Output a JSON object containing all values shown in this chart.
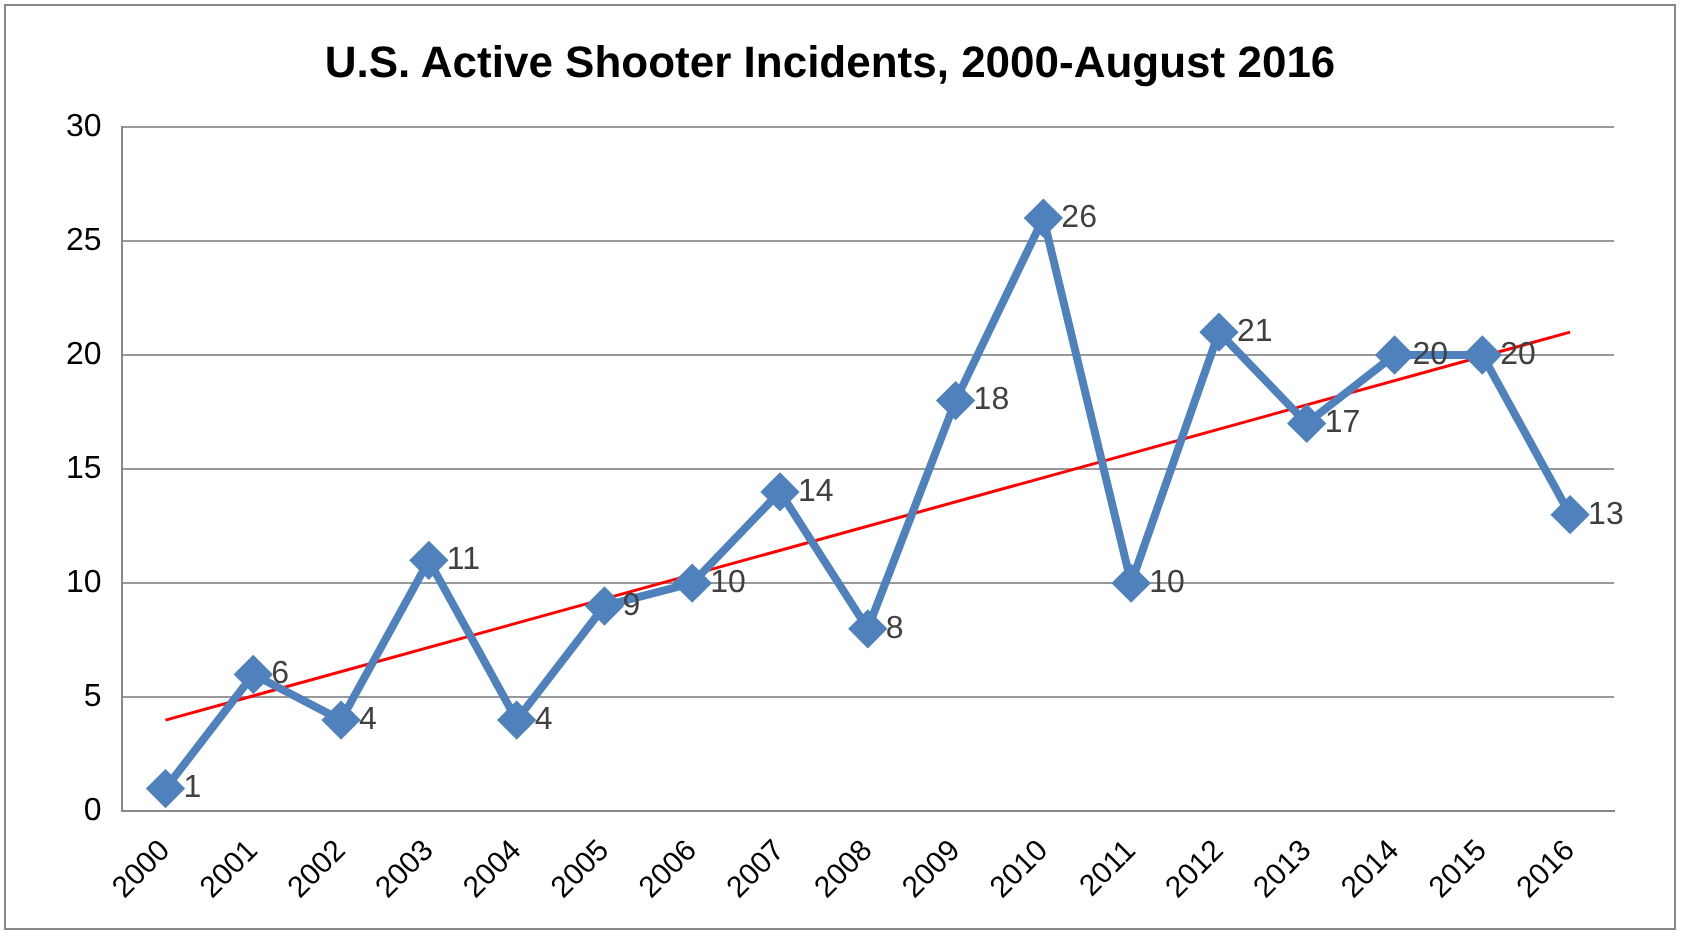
{
  "chart_data": {
    "type": "line",
    "title": "U.S. Active Shooter Incidents, 2000-August 2016",
    "categories": [
      "2000",
      "2001",
      "2002",
      "2003",
      "2004",
      "2005",
      "2006",
      "2007",
      "2008",
      "2009",
      "2010",
      "2011",
      "2012",
      "2013",
      "2014",
      "2015",
      "2016"
    ],
    "series": [
      {
        "color": "#4f81bd",
        "marker": "diamond",
        "data_labels": true,
        "values": [
          1,
          6,
          4,
          11,
          4,
          9,
          10,
          14,
          8,
          18,
          26,
          10,
          21,
          17,
          20,
          20,
          13
        ]
      },
      {
        "type": "line",
        "color": "#ff0000",
        "marker": "none",
        "values": [
          4,
          null,
          null,
          null,
          null,
          null,
          null,
          null,
          null,
          null,
          null,
          null,
          null,
          null,
          null,
          null,
          21
        ]
      }
    ],
    "ylim": [
      0,
      30
    ],
    "yticks": [
      0,
      5,
      10,
      15,
      20,
      25,
      30
    ],
    "grid": "y",
    "legend": false
  }
}
